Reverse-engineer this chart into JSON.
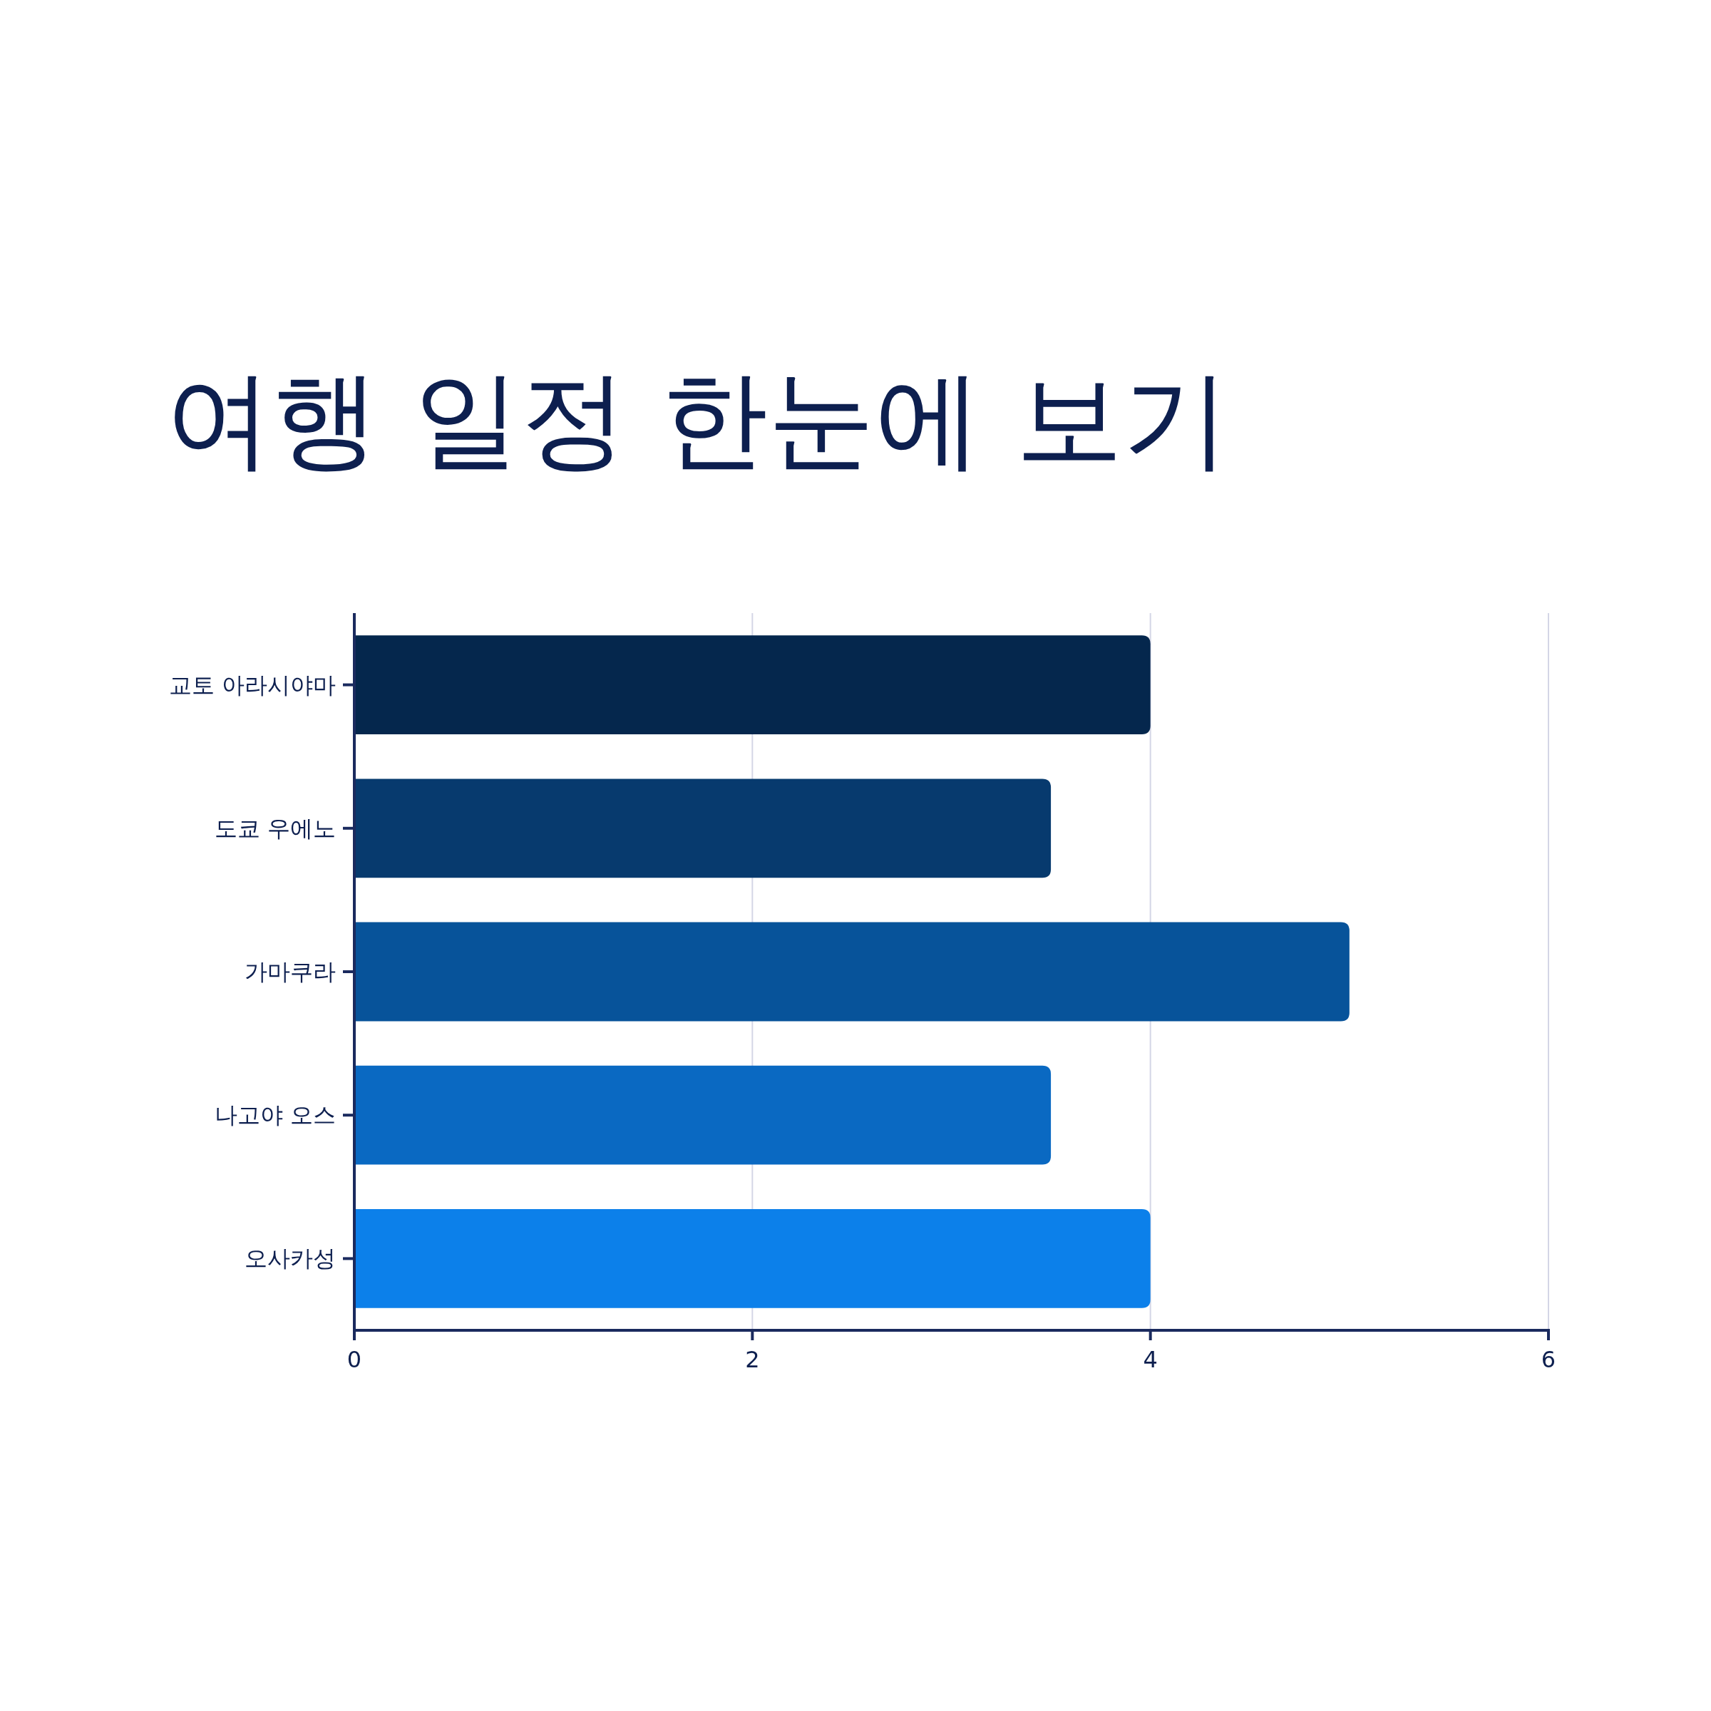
{
  "chart_data": {
    "type": "bar",
    "title": "여행 일정 한눈에 보기",
    "orientation": "horizontal",
    "categories": [
      "교토 아라시야마",
      "도쿄 우에노",
      "가마쿠라",
      "나고야 오스",
      "오사카성"
    ],
    "values": [
      4,
      3.5,
      5,
      3.5,
      4
    ],
    "colors": [
      "#05274d",
      "#073a6e",
      "#07539a",
      "#0a69c2",
      "#0c80ea"
    ],
    "xlim": [
      0,
      6
    ],
    "xticks": [
      0,
      2,
      4,
      6
    ],
    "grid": "x"
  }
}
